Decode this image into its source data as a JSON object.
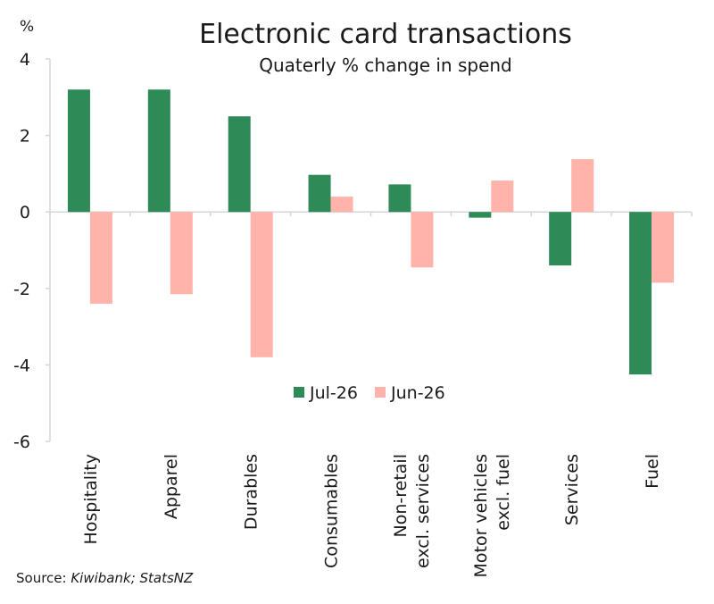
{
  "chart_data": {
    "type": "bar",
    "title": "Electronic card transactions",
    "subtitle": "Quaterly % change in spend",
    "ylabel": "%",
    "ylim": [
      -6,
      4
    ],
    "yticks": [
      4,
      2,
      0,
      -2,
      -4,
      -6
    ],
    "ytick_labels": [
      "4",
      "2",
      "0",
      "-2",
      "-4",
      "-6"
    ],
    "categories": [
      [
        "Hospitality"
      ],
      [
        "Apparel"
      ],
      [
        "Durables"
      ],
      [
        "Consumables"
      ],
      [
        "Non-retail",
        "excl. services"
      ],
      [
        "Motor vehicles",
        "excl. fuel"
      ],
      [
        "Services"
      ],
      [
        "Fuel"
      ]
    ],
    "series": [
      {
        "name": "Jul-26",
        "color": "#2e8b57",
        "values": [
          3.2,
          3.2,
          2.5,
          0.97,
          0.72,
          -0.15,
          -1.4,
          -4.25
        ]
      },
      {
        "name": "Jun-26",
        "color": "#ffb3aa",
        "values": [
          -2.4,
          -2.15,
          -3.8,
          0.4,
          -1.45,
          0.82,
          1.38,
          -1.85
        ]
      }
    ],
    "legend_position": "lower-center",
    "grid": false
  },
  "source": {
    "prefix": "Source: ",
    "text": "Kiwibank; StatsNZ"
  }
}
